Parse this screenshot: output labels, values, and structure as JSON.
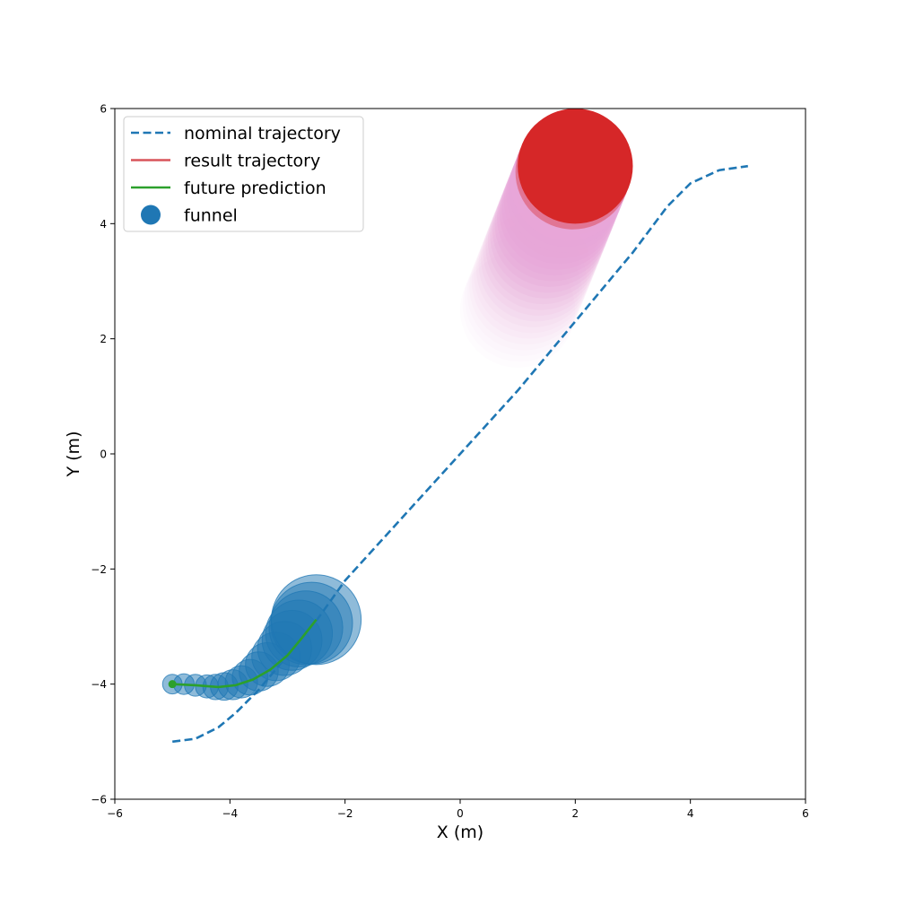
{
  "chart_data": {
    "type": "line",
    "title": "",
    "xlabel": "X (m)",
    "ylabel": "Y (m)",
    "xlim": [
      -6,
      6
    ],
    "ylim": [
      -6,
      6
    ],
    "xticks": [
      -6,
      -4,
      -2,
      0,
      2,
      4,
      6
    ],
    "yticks": [
      -6,
      -4,
      -2,
      0,
      2,
      4,
      6
    ],
    "xtick_labels": [
      "−6",
      "−4",
      "−2",
      "0",
      "2",
      "4",
      "6"
    ],
    "ytick_labels": [
      "−6",
      "−4",
      "−2",
      "0",
      "2",
      "4",
      "6"
    ],
    "grid": false,
    "legend_position": "top-left",
    "legend": [
      {
        "label": "nominal trajectory",
        "style": "dashed-line",
        "color": "#1f77b4"
      },
      {
        "label": "result trajectory",
        "style": "solid-line",
        "color": "#d9545a"
      },
      {
        "label": "future prediction",
        "style": "solid-line",
        "color": "#2ca02c"
      },
      {
        "label": "funnel",
        "style": "marker",
        "color": "#1f77b4"
      }
    ],
    "nominal_trajectory": {
      "x": [
        -5.0,
        -4.6,
        -4.2,
        -3.9,
        -3.5,
        -3.0,
        -2.5,
        -2.0,
        -1.0,
        0.0,
        1.0,
        2.0,
        3.0,
        3.6,
        4.0,
        4.5,
        5.0
      ],
      "y": [
        -5.0,
        -4.95,
        -4.75,
        -4.5,
        -4.1,
        -3.5,
        -2.9,
        -2.2,
        -1.1,
        0.0,
        1.1,
        2.3,
        3.5,
        4.3,
        4.7,
        4.93,
        5.0
      ]
    },
    "future_prediction": {
      "x": [
        -5.0,
        -4.6,
        -4.2,
        -3.9,
        -3.6,
        -3.3,
        -3.0,
        -2.75,
        -2.5
      ],
      "y": [
        -4.0,
        -4.02,
        -4.05,
        -4.02,
        -3.92,
        -3.75,
        -3.5,
        -3.2,
        -2.88
      ]
    },
    "funnel": {
      "color": "#1f77b4",
      "x": [
        -5.0,
        -4.8,
        -4.6,
        -4.4,
        -4.25,
        -4.1,
        -3.95,
        -3.8,
        -3.65,
        -3.5,
        -3.35,
        -3.2,
        -3.05,
        -2.92,
        -2.8,
        -2.68,
        -2.58,
        -2.5
      ],
      "y": [
        -4.0,
        -4.0,
        -4.02,
        -4.04,
        -4.05,
        -4.04,
        -4.01,
        -3.96,
        -3.88,
        -3.78,
        -3.66,
        -3.52,
        -3.38,
        -3.24,
        -3.12,
        -3.02,
        -2.94,
        -2.88
      ],
      "r": [
        0.17,
        0.18,
        0.19,
        0.2,
        0.22,
        0.24,
        0.26,
        0.28,
        0.31,
        0.34,
        0.38,
        0.42,
        0.47,
        0.52,
        0.58,
        0.64,
        0.71,
        0.78
      ]
    },
    "obstacle": {
      "start": [
        1.0,
        2.5
      ],
      "end": [
        2.0,
        5.0
      ],
      "radius": 1.0,
      "start_color": "#e7a6d8",
      "end_color": "#d62728",
      "samples": 26
    }
  }
}
